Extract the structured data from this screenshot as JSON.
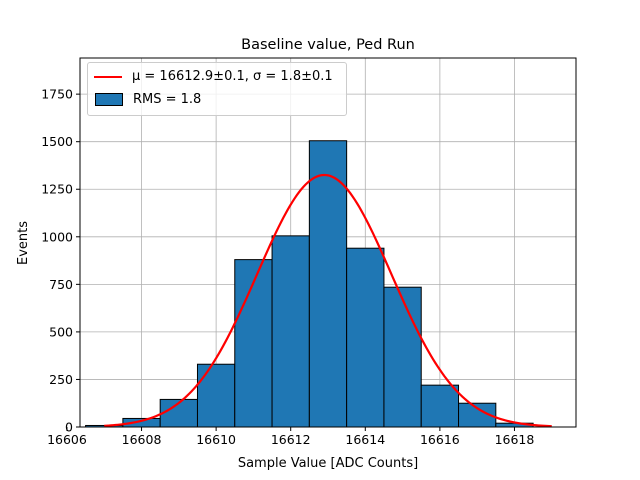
{
  "chart_data": {
    "type": "bar",
    "title": "Baseline value, Ped Run",
    "xlabel": "Sample Value [ADC Counts]",
    "ylabel": "Events",
    "xlim": [
      16606.35,
      16619.65
    ],
    "ylim": [
      0,
      1940
    ],
    "xticks": [
      16606,
      16608,
      16610,
      16612,
      16614,
      16616,
      16618
    ],
    "yticks": [
      0,
      250,
      500,
      750,
      1000,
      1250,
      1500,
      1750
    ],
    "grid": true,
    "legend_position": "top-left",
    "bin_width": 1.0,
    "bins": [
      {
        "center": 16607.0,
        "value": 8
      },
      {
        "center": 16608.0,
        "value": 45
      },
      {
        "center": 16609.0,
        "value": 145
      },
      {
        "center": 16610.0,
        "value": 330
      },
      {
        "center": 16611.0,
        "value": 880
      },
      {
        "center": 16612.0,
        "value": 1005
      },
      {
        "center": 16613.0,
        "value": 1505
      },
      {
        "center": 16614.0,
        "value": 940
      },
      {
        "center": 16615.0,
        "value": 735
      },
      {
        "center": 16616.0,
        "value": 220
      },
      {
        "center": 16617.0,
        "value": 125
      },
      {
        "center": 16618.0,
        "value": 20
      }
    ],
    "fit": {
      "mu": 16612.9,
      "sigma": 1.8,
      "amplitude": 1325,
      "x_range": [
        16607.0,
        16619.0
      ]
    },
    "series": [
      {
        "name": "μ = 16612.9±0.1, σ = 1.8±0.1",
        "type": "line"
      },
      {
        "name": "RMS = 1.8",
        "type": "bar"
      }
    ],
    "colors": {
      "bar": "#1f77b4",
      "bar_edge": "#000000",
      "fit": "#ff0000",
      "grid": "#b0b0b0"
    }
  },
  "legend": {
    "fit_label": "μ = 16612.9±0.1, σ = 1.8±0.1",
    "hist_label": "RMS = 1.8"
  }
}
